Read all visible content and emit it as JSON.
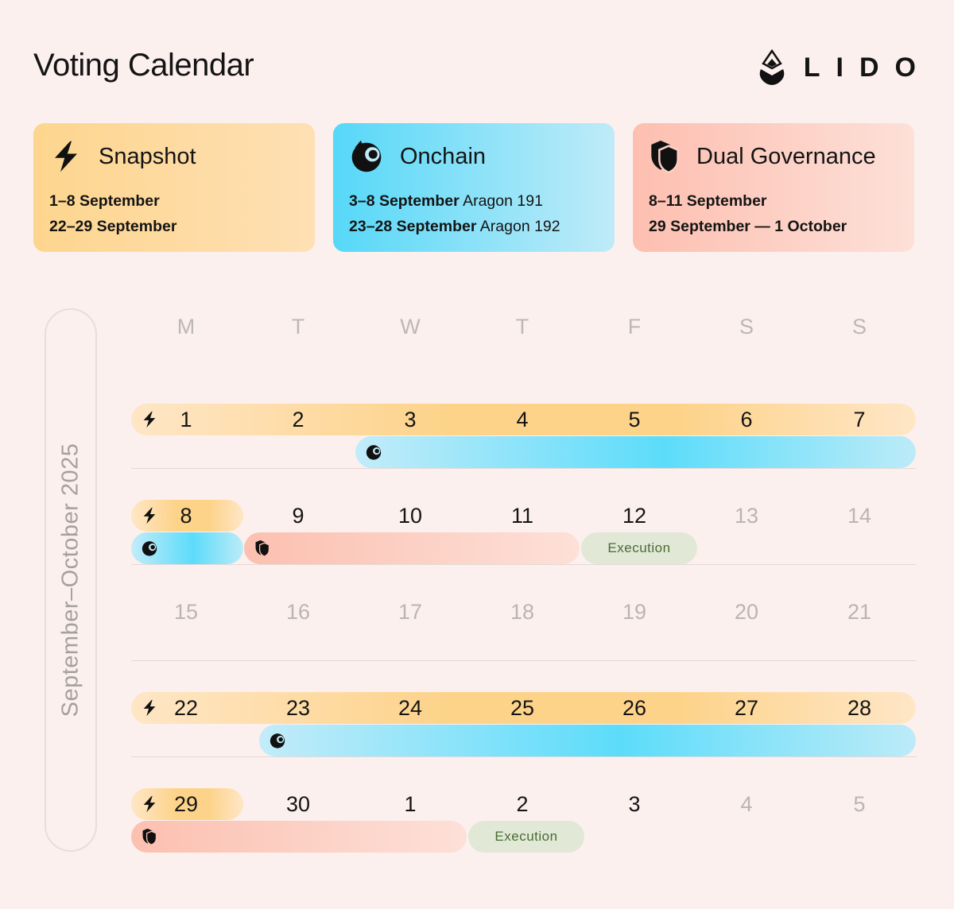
{
  "header": {
    "title": "Voting Calendar",
    "logo_text": "LIDO"
  },
  "cards": {
    "snapshot": {
      "name": "Snapshot",
      "icon": "lightning-icon",
      "lines": [
        {
          "dates": "1–8 September",
          "suffix": ""
        },
        {
          "dates": "22–29 September",
          "suffix": ""
        }
      ]
    },
    "onchain": {
      "name": "Onchain",
      "icon": "aragon-icon",
      "lines": [
        {
          "dates": "3–8 September",
          "suffix": " Aragon 191"
        },
        {
          "dates": "23–28 September",
          "suffix": " Aragon 192"
        }
      ]
    },
    "dual": {
      "name": "Dual Governance",
      "icon": "shield-icon",
      "lines": [
        {
          "dates": "8–11 September",
          "suffix": ""
        },
        {
          "dates": "29 September — 1 October",
          "suffix": ""
        }
      ]
    }
  },
  "calendar": {
    "period_label": "September–October 2025",
    "weekdays": [
      "M",
      "T",
      "W",
      "T",
      "F",
      "S",
      "S"
    ],
    "weeks": [
      {
        "days": [
          "1",
          "2",
          "3",
          "4",
          "5",
          "6",
          "7"
        ],
        "muted": []
      },
      {
        "days": [
          "8",
          "9",
          "10",
          "11",
          "12",
          "13",
          "14"
        ],
        "muted": [
          "13",
          "14"
        ]
      },
      {
        "days": [
          "15",
          "16",
          "17",
          "18",
          "19",
          "20",
          "21"
        ],
        "muted": [
          "15",
          "16",
          "17",
          "18",
          "19",
          "20",
          "21"
        ]
      },
      {
        "days": [
          "22",
          "23",
          "24",
          "25",
          "26",
          "27",
          "28"
        ],
        "muted": []
      },
      {
        "days": [
          "29",
          "30",
          "1",
          "2",
          "3",
          "4",
          "5"
        ],
        "muted": [
          "4",
          "5"
        ]
      }
    ],
    "execution_label": "Execution"
  },
  "colors": {
    "snapshot": "#fdd38a",
    "onchain": "#5cdcfa",
    "dual": "#fcc0b0",
    "execution": "#e1e8d6",
    "execution_text": "#4a6b35",
    "background": "#fcf0ee"
  }
}
